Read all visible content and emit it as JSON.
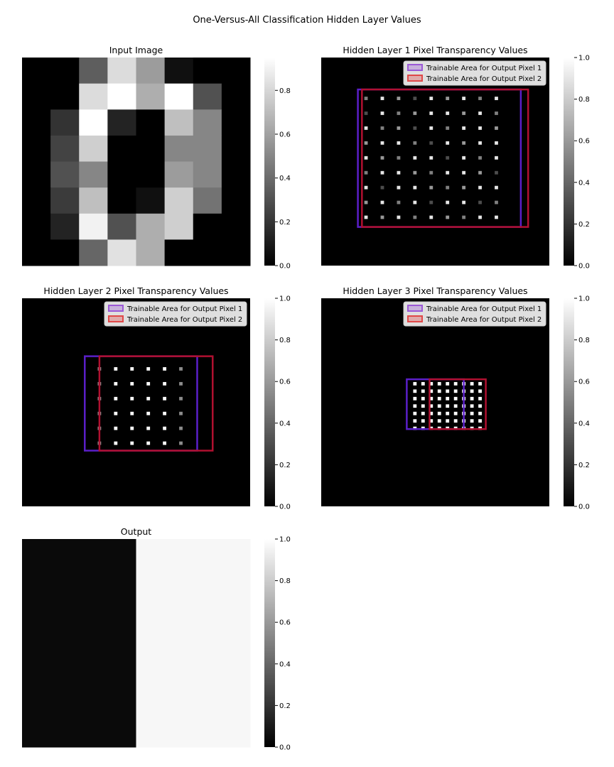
{
  "figure": {
    "title": "One-Versus-All Classification Hidden Layer Values"
  },
  "legend": {
    "entries": [
      {
        "label": "Trainable Area for Output Pixel 1",
        "color": "#9b59d6"
      },
      {
        "label": "Trainable Area for Output Pixel 2",
        "color": "#e04848"
      }
    ]
  },
  "chart_data": [
    {
      "type": "heatmap",
      "title": "Input Image",
      "colormap": "gray",
      "colorbar": {
        "range": [
          0,
          0.95
        ],
        "ticks": [
          0.0,
          0.2,
          0.4,
          0.6,
          0.8
        ],
        "tick_labels": [
          "0.0",
          "0.2",
          "0.4",
          "0.6",
          "0.8"
        ]
      },
      "values": [
        [
          0.0,
          0.0,
          0.35,
          0.82,
          0.58,
          0.06,
          0.0,
          0.0
        ],
        [
          0.0,
          0.0,
          0.82,
          0.95,
          0.65,
          0.95,
          0.3,
          0.0
        ],
        [
          0.0,
          0.19,
          0.95,
          0.13,
          0.0,
          0.71,
          0.5,
          0.0
        ],
        [
          0.0,
          0.25,
          0.77,
          0.0,
          0.0,
          0.5,
          0.5,
          0.0
        ],
        [
          0.0,
          0.3,
          0.5,
          0.0,
          0.0,
          0.58,
          0.5,
          0.0
        ],
        [
          0.0,
          0.22,
          0.71,
          0.0,
          0.06,
          0.77,
          0.43,
          0.0
        ],
        [
          0.0,
          0.13,
          0.9,
          0.3,
          0.65,
          0.77,
          0.0,
          0.0
        ],
        [
          0.0,
          0.0,
          0.38,
          0.84,
          0.65,
          0.0,
          0.0,
          0.0
        ]
      ]
    },
    {
      "type": "heatmap",
      "title": "Hidden Layer 1 Pixel Transparency Values",
      "colormap": "gray",
      "grid_size": 28,
      "colorbar": {
        "range": [
          0,
          1
        ],
        "ticks": [
          0.0,
          0.2,
          0.4,
          0.6,
          0.8,
          1.0
        ],
        "tick_labels": [
          "0.0",
          "0.2",
          "0.4",
          "0.6",
          "0.8",
          "1.0"
        ]
      },
      "dot_rows": [
        5,
        7,
        9,
        11,
        13,
        15,
        17,
        19,
        21
      ],
      "dot_cols": [
        5,
        7,
        9,
        11,
        13,
        15,
        17,
        19,
        21
      ],
      "dot_row_values": [
        [
          0.5,
          0.9,
          0.6,
          0.3,
          0.9,
          0.6,
          0.9,
          0.5,
          0.9
        ],
        [
          0.3,
          0.9,
          0.5,
          0.6,
          0.9,
          0.9,
          0.6,
          0.9,
          0.5
        ],
        [
          0.9,
          0.5,
          0.6,
          0.3,
          0.9,
          0.5,
          0.9,
          0.9,
          0.6
        ],
        [
          0.6,
          0.9,
          0.9,
          0.5,
          0.3,
          0.9,
          0.6,
          0.9,
          0.9
        ],
        [
          0.9,
          0.6,
          0.5,
          0.9,
          0.9,
          0.3,
          0.9,
          0.5,
          0.9
        ],
        [
          0.5,
          0.9,
          0.9,
          0.6,
          0.5,
          0.9,
          0.9,
          0.6,
          0.3
        ],
        [
          0.9,
          0.3,
          0.9,
          0.9,
          0.6,
          0.5,
          0.6,
          0.9,
          0.9
        ],
        [
          0.6,
          0.9,
          0.5,
          0.9,
          0.3,
          0.9,
          0.9,
          0.3,
          0.5
        ],
        [
          0.9,
          0.6,
          0.9,
          0.5,
          0.9,
          0.6,
          0.5,
          0.9,
          0.9
        ]
      ],
      "area_pixel_1": {
        "x": [
          4.5,
          24.5
        ],
        "y": [
          4.3,
          22.8
        ]
      },
      "area_pixel_2": {
        "x": [
          5.0,
          25.4
        ],
        "y": [
          4.3,
          22.8
        ]
      }
    },
    {
      "type": "heatmap",
      "title": "Hidden Layer 2 Pixel Transparency Values",
      "colormap": "gray",
      "grid_size": 28,
      "colorbar": {
        "range": [
          0,
          1
        ],
        "ticks": [
          0.0,
          0.2,
          0.4,
          0.6,
          0.8,
          1.0
        ],
        "tick_labels": [
          "0.0",
          "0.2",
          "0.4",
          "0.6",
          "0.8",
          "1.0"
        ]
      },
      "dot_rows": [
        9,
        11,
        13,
        15,
        17,
        19
      ],
      "dot_cols": [
        9,
        11,
        13,
        15,
        17,
        19
      ],
      "dot_value": 1.0,
      "edge_value": 0.55,
      "area_pixel_1": {
        "x": [
          7.7,
          21.5
        ],
        "y": [
          7.8,
          20.5
        ]
      },
      "area_pixel_2": {
        "x": [
          9.5,
          23.4
        ],
        "y": [
          7.8,
          20.5
        ]
      }
    },
    {
      "type": "heatmap",
      "title": "Hidden Layer 3 Pixel Transparency Values",
      "colormap": "gray",
      "grid_size": 28,
      "colorbar": {
        "range": [
          0,
          1
        ],
        "ticks": [
          0.0,
          0.2,
          0.4,
          0.6,
          0.8,
          1.0
        ],
        "tick_labels": [
          "0.0",
          "0.2",
          "0.4",
          "0.6",
          "0.8",
          "1.0"
        ]
      },
      "dot_rows": [
        11,
        12,
        13,
        14,
        15,
        16,
        17
      ],
      "dot_cols": [
        11,
        12,
        13,
        14,
        15,
        16,
        17,
        18,
        19
      ],
      "dot_value": 1.0,
      "area_pixel_1": {
        "x": [
          10.5,
          17.5
        ],
        "y": [
          10.9,
          17.6
        ]
      },
      "area_pixel_2": {
        "x": [
          13.3,
          20.2
        ],
        "y": [
          10.9,
          17.6
        ]
      }
    },
    {
      "type": "heatmap",
      "title": "Output",
      "colormap": "gray",
      "colorbar": {
        "range": [
          0,
          1
        ],
        "ticks": [
          0.0,
          0.2,
          0.4,
          0.6,
          0.8,
          1.0
        ],
        "tick_labels": [
          "0.0",
          "0.2",
          "0.4",
          "0.6",
          "0.8",
          "1.0"
        ]
      },
      "values": [
        [
          0.04,
          0.97
        ]
      ]
    }
  ]
}
